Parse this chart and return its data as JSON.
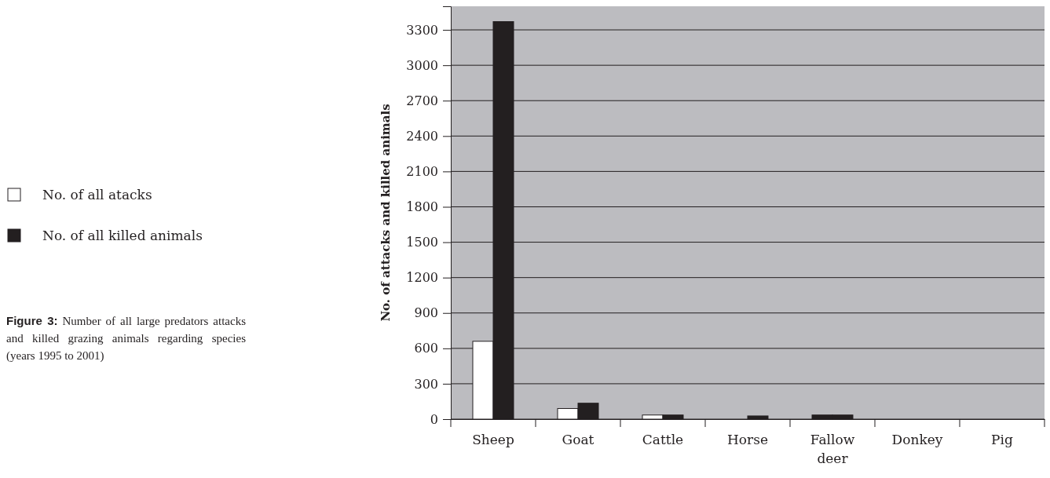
{
  "chart_data": {
    "type": "bar",
    "ylabel": "No. of attacks and killed animals",
    "categories": [
      "Sheep",
      "Goat",
      "Cattle",
      "Horse",
      "Fallow deer",
      "Donkey",
      "Pig"
    ],
    "series": [
      {
        "name": "No. of all atacks",
        "color": "#ffffff",
        "colors": [
          "#ffffff",
          "#ffffff",
          "#ffffff",
          "#ffffff",
          "#231f20",
          "#ffffff",
          "#ffffff"
        ],
        "values": [
          660,
          90,
          35,
          0,
          35,
          0,
          0
        ]
      },
      {
        "name": "No. of all killed animals",
        "color": "#231f20",
        "values": [
          3370,
          135,
          35,
          27,
          35,
          0,
          0
        ]
      }
    ],
    "ylim": [
      0,
      3500
    ],
    "yticks": [
      0,
      300,
      600,
      900,
      1200,
      1500,
      1800,
      2100,
      2400,
      2700,
      3000,
      3300
    ],
    "grid": "y",
    "legend": "left",
    "annotations": [
      "Figure 3:",
      "Number of all large predators attacks and killed grazing animals regarding species (years 1995 to 2001)"
    ]
  }
}
